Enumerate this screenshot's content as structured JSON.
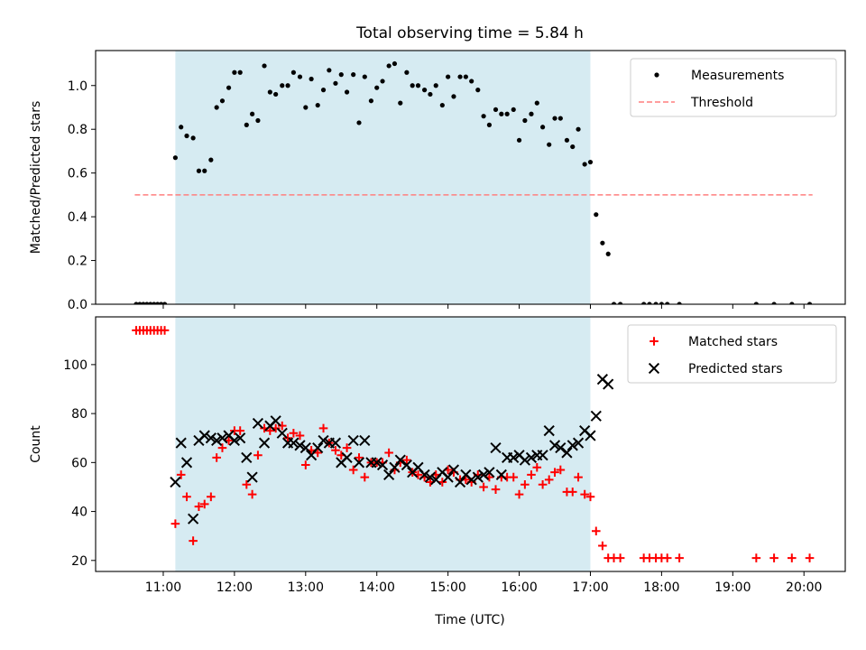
{
  "figure": {
    "title": "Total observing time = 5.84 h"
  },
  "chart_data": [
    {
      "type": "scatter",
      "title": "Total observing time = 5.84 h",
      "xlabel": "",
      "ylabel": "Matched/Predicted stars",
      "x_unit": "hours UTC",
      "xlim": [
        10.05,
        20.58
      ],
      "ylim": [
        0.0,
        1.16
      ],
      "yticks": [
        0.0,
        0.2,
        0.4,
        0.6,
        0.8,
        1.0
      ],
      "ytick_labels": [
        "0.0",
        "0.2",
        "0.4",
        "0.6",
        "0.8",
        "1.0"
      ],
      "observing_window": [
        11.17,
        17.0
      ],
      "observing_window_color": "#add8e6",
      "legend_position": "top-right",
      "grid": false,
      "series": [
        {
          "name": "Measurements",
          "marker": "dot",
          "color": "#000000",
          "x": [
            10.62,
            10.67,
            10.72,
            10.77,
            10.82,
            10.87,
            10.92,
            10.97,
            11.02,
            11.17,
            11.25,
            11.33,
            11.42,
            11.5,
            11.58,
            11.67,
            11.75,
            11.83,
            11.92,
            12.0,
            12.08,
            12.17,
            12.25,
            12.33,
            12.42,
            12.5,
            12.58,
            12.67,
            12.75,
            12.83,
            12.92,
            13.0,
            13.08,
            13.17,
            13.25,
            13.33,
            13.42,
            13.5,
            13.58,
            13.67,
            13.75,
            13.83,
            13.92,
            14.0,
            14.08,
            14.17,
            14.25,
            14.33,
            14.42,
            14.5,
            14.58,
            14.67,
            14.75,
            14.83,
            14.92,
            15.0,
            15.08,
            15.17,
            15.25,
            15.33,
            15.42,
            15.5,
            15.58,
            15.67,
            15.75,
            15.83,
            15.92,
            16.0,
            16.08,
            16.17,
            16.25,
            16.33,
            16.42,
            16.5,
            16.58,
            16.67,
            16.75,
            16.83,
            16.92,
            17.0,
            17.08,
            17.17,
            17.25,
            17.33,
            17.42,
            17.75,
            17.83,
            17.92,
            18.0,
            18.08,
            18.25,
            19.33,
            19.58,
            19.83,
            20.08
          ],
          "y": [
            0.0,
            0.0,
            0.0,
            0.0,
            0.0,
            0.0,
            0.0,
            0.0,
            0.0,
            0.67,
            0.81,
            0.77,
            0.76,
            0.61,
            0.61,
            0.66,
            0.9,
            0.93,
            0.99,
            1.06,
            1.06,
            0.82,
            0.87,
            0.84,
            1.09,
            0.97,
            0.96,
            1.0,
            1.0,
            1.06,
            1.04,
            0.9,
            1.03,
            0.91,
            0.98,
            1.07,
            1.01,
            1.05,
            0.97,
            1.05,
            0.83,
            1.04,
            0.93,
            0.99,
            1.02,
            1.09,
            1.1,
            0.92,
            1.06,
            1.0,
            1.0,
            0.98,
            0.96,
            1.0,
            0.91,
            1.04,
            0.95,
            1.04,
            1.04,
            1.02,
            0.98,
            0.86,
            0.82,
            0.89,
            0.87,
            0.87,
            0.89,
            0.75,
            0.84,
            0.87,
            0.92,
            0.81,
            0.73,
            0.85,
            0.85,
            0.75,
            0.72,
            0.8,
            0.64,
            0.65,
            0.41,
            0.28,
            0.23,
            0.0,
            0.0,
            0.0,
            0.0,
            0.0,
            0.0,
            0.0,
            0.0,
            0.0,
            0.0,
            0.0,
            0.0
          ]
        },
        {
          "name": "Threshold",
          "line_style": "dashed",
          "color": "#ff7f7f",
          "x": [
            10.6,
            20.12
          ],
          "y": [
            0.5,
            0.5
          ]
        }
      ]
    },
    {
      "type": "scatter",
      "title": "",
      "xlabel": "Time (UTC)",
      "ylabel": "Count",
      "x_unit": "hours UTC",
      "xlim": [
        10.05,
        20.58
      ],
      "ylim": [
        15.5,
        119.5
      ],
      "yticks": [
        20,
        40,
        60,
        80,
        100
      ],
      "ytick_labels": [
        "20",
        "40",
        "60",
        "80",
        "100"
      ],
      "xticks": [
        11,
        12,
        13,
        14,
        15,
        16,
        17,
        18,
        19,
        20
      ],
      "xtick_labels": [
        "11:00",
        "12:00",
        "13:00",
        "14:00",
        "15:00",
        "16:00",
        "17:00",
        "18:00",
        "19:00",
        "20:00"
      ],
      "observing_window": [
        11.17,
        17.0
      ],
      "observing_window_color": "#add8e6",
      "legend_position": "top-right",
      "grid": false,
      "series": [
        {
          "name": "Matched stars",
          "marker": "plus",
          "color": "#ff0000",
          "x": [
            10.62,
            10.67,
            10.72,
            10.77,
            10.82,
            10.87,
            10.92,
            10.97,
            11.02,
            11.17,
            11.25,
            11.33,
            11.42,
            11.5,
            11.58,
            11.67,
            11.75,
            11.83,
            11.92,
            12.0,
            12.08,
            12.17,
            12.25,
            12.33,
            12.42,
            12.5,
            12.58,
            12.67,
            12.75,
            12.83,
            12.92,
            13.0,
            13.08,
            13.17,
            13.25,
            13.33,
            13.42,
            13.5,
            13.58,
            13.67,
            13.75,
            13.83,
            13.92,
            14.0,
            14.08,
            14.17,
            14.25,
            14.33,
            14.42,
            14.5,
            14.58,
            14.67,
            14.75,
            14.83,
            14.92,
            15.0,
            15.08,
            15.17,
            15.25,
            15.33,
            15.42,
            15.5,
            15.58,
            15.67,
            15.75,
            15.83,
            15.92,
            16.0,
            16.08,
            16.17,
            16.25,
            16.33,
            16.42,
            16.5,
            16.58,
            16.67,
            16.75,
            16.83,
            16.92,
            17.0,
            17.08,
            17.17,
            17.25,
            17.33,
            17.42,
            17.75,
            17.83,
            17.92,
            18.0,
            18.08,
            18.25,
            19.33,
            19.58,
            19.83,
            20.08
          ],
          "y": [
            114,
            114,
            114,
            114,
            114,
            114,
            114,
            114,
            114,
            35,
            55,
            46,
            28,
            42,
            43,
            46,
            62,
            66,
            69,
            73,
            73,
            51,
            47,
            63,
            74,
            73,
            74,
            75,
            70,
            72,
            71,
            59,
            65,
            64,
            74,
            68,
            65,
            63,
            66,
            57,
            62,
            54,
            60,
            60,
            60,
            64,
            57,
            60,
            61,
            56,
            55,
            54,
            52,
            55,
            52,
            57,
            56,
            53,
            53,
            52,
            55,
            50,
            54,
            49,
            54,
            54,
            54,
            47,
            51,
            55,
            58,
            51,
            53,
            56,
            57,
            48,
            48,
            54,
            47,
            46,
            32,
            26,
            21,
            21,
            21,
            21,
            21,
            21,
            21,
            21,
            21,
            21,
            21,
            21,
            21
          ]
        },
        {
          "name": "Predicted stars",
          "marker": "x",
          "color": "#000000",
          "x": [
            11.17,
            11.25,
            11.33,
            11.42,
            11.5,
            11.58,
            11.67,
            11.75,
            11.83,
            11.92,
            12.0,
            12.08,
            12.17,
            12.25,
            12.33,
            12.42,
            12.5,
            12.58,
            12.67,
            12.75,
            12.83,
            12.92,
            13.0,
            13.08,
            13.17,
            13.25,
            13.33,
            13.42,
            13.5,
            13.58,
            13.67,
            13.75,
            13.83,
            13.92,
            14.0,
            14.08,
            14.17,
            14.25,
            14.33,
            14.42,
            14.5,
            14.58,
            14.67,
            14.75,
            14.83,
            14.92,
            15.0,
            15.08,
            15.17,
            15.25,
            15.33,
            15.42,
            15.5,
            15.58,
            15.67,
            15.75,
            15.83,
            15.92,
            16.0,
            16.08,
            16.17,
            16.25,
            16.33,
            16.42,
            16.5,
            16.58,
            16.67,
            16.75,
            16.83,
            16.92,
            17.0,
            17.08,
            17.17,
            17.25
          ],
          "y": [
            52,
            68,
            60,
            37,
            69,
            71,
            70,
            69,
            70,
            71,
            69,
            70,
            62,
            54,
            76,
            68,
            75,
            77,
            72,
            68,
            68,
            67,
            66,
            63,
            66,
            69,
            68,
            68,
            60,
            62,
            69,
            60,
            69,
            60,
            60,
            59,
            55,
            58,
            61,
            59,
            56,
            58,
            55,
            54,
            53,
            56,
            54,
            57,
            52,
            55,
            53,
            54,
            55,
            56,
            66,
            55,
            62,
            62,
            63,
            61,
            62,
            63,
            63,
            73,
            67,
            66,
            64,
            67,
            68,
            73,
            71,
            79,
            94,
            92
          ]
        }
      ]
    }
  ]
}
